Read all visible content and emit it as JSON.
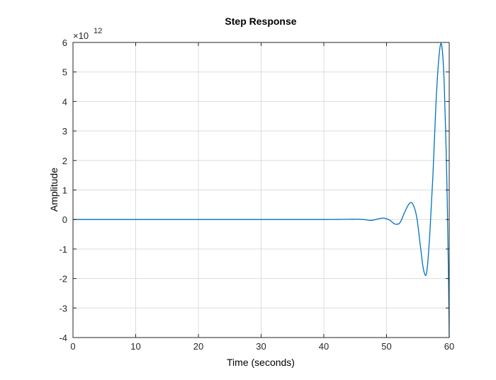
{
  "chart_data": {
    "type": "line",
    "title": "Step Response",
    "xlabel": "Time (seconds)",
    "ylabel": "Amplitude",
    "exponent_label": "×10",
    "exponent_power": "12",
    "xlim": [
      0,
      60
    ],
    "ylim": [
      -4,
      6
    ],
    "y_scale_factor": 1000000000000.0,
    "xticks": [
      0,
      10,
      20,
      30,
      40,
      50,
      60
    ],
    "yticks": [
      -4,
      -3,
      -2,
      -1,
      0,
      1,
      2,
      3,
      4,
      5,
      6
    ],
    "grid": true,
    "colors": {
      "line": "#0072BD",
      "grid": "#dcdcdc",
      "axes": "#262626"
    },
    "series": [
      {
        "x": [
          0,
          5,
          10,
          15,
          20,
          25,
          30,
          35,
          40,
          42,
          44,
          45.5,
          46.5,
          47.5,
          48.5,
          49.5,
          50.5,
          51.3,
          52.1,
          52.8,
          53.5,
          54.1,
          54.8,
          55.4,
          55.9,
          56.4,
          56.9,
          57.4,
          57.9,
          58.4,
          58.8,
          59.2,
          59.6,
          59.85,
          60.0
        ],
        "y": [
          0,
          0,
          0,
          0,
          0,
          0,
          0,
          0,
          0,
          0.003,
          0.008,
          0.01,
          -0.005,
          -0.03,
          0.01,
          0.05,
          -0.02,
          -0.15,
          -0.12,
          0.2,
          0.5,
          0.55,
          0.1,
          -0.9,
          -1.7,
          -1.8,
          -0.5,
          1.5,
          4.0,
          5.6,
          5.9,
          4.6,
          1.5,
          -1.5,
          -4.0
        ]
      }
    ]
  }
}
